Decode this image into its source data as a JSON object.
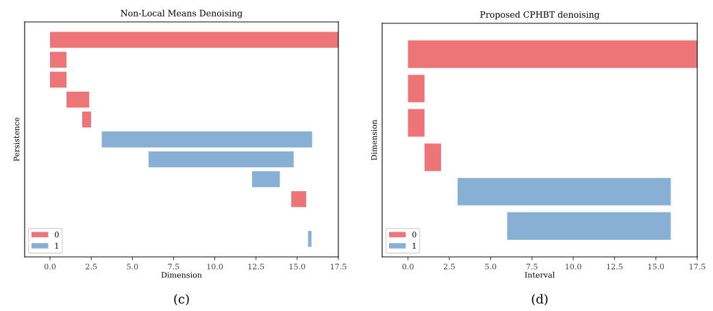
{
  "chart_data": [
    {
      "type": "bar",
      "orientation": "horizontal",
      "title": "Non-Local Means Denoising",
      "xlabel": "Dimension",
      "ylabel": "Persistence",
      "categories": [
        null,
        null,
        null,
        null,
        null,
        null,
        null,
        null,
        null,
        null,
        null
      ],
      "series": [
        {
          "name": "0",
          "color": "#ee7577",
          "base": [
            0,
            0,
            0,
            1.0,
            1.95,
            null,
            null,
            null,
            14.64,
            null,
            null
          ],
          "values": [
            17.5,
            1.0,
            1.0,
            1.38,
            0.54,
            null,
            null,
            null,
            0.91,
            null,
            null
          ]
        },
        {
          "name": "1",
          "color": "#88b0d5",
          "base": [
            null,
            null,
            null,
            null,
            null,
            3.14,
            5.98,
            12.26,
            null,
            null,
            15.66
          ],
          "values": [
            null,
            null,
            null,
            null,
            null,
            12.77,
            8.81,
            1.69,
            null,
            null,
            0.21
          ]
        }
      ],
      "xlim": [
        -1.54,
        17.5
      ],
      "xticks": [
        {
          "value": 0,
          "label": "0.0"
        },
        {
          "value": 2.5,
          "label": "2.5"
        },
        {
          "value": 5,
          "label": "5.0"
        },
        {
          "value": 7.5,
          "label": "7.5"
        },
        {
          "value": 10,
          "label": "10.0"
        },
        {
          "value": 12.5,
          "label": "12.5"
        },
        {
          "value": 15,
          "label": "15.0"
        },
        {
          "value": 17.5,
          "label": "17.5"
        }
      ],
      "legend": "bottom left",
      "grid": false,
      "tick_labels": "x",
      "annotations": [
        "(c)"
      ]
    },
    {
      "type": "bar",
      "orientation": "horizontal",
      "title": "Proposed CPHBT denoising",
      "xlabel": "Interval",
      "ylabel": "Dimension",
      "categories": [
        null,
        null,
        null,
        null,
        null,
        null
      ],
      "series": [
        {
          "name": "0",
          "color": "#ee7577",
          "base": [
            0,
            0,
            0,
            1.0,
            null,
            null
          ],
          "values": [
            17.5,
            1.0,
            1.0,
            1.0,
            null,
            null
          ]
        },
        {
          "name": "1",
          "color": "#88b0d5",
          "base": [
            null,
            null,
            null,
            null,
            3.0,
            6.0
          ],
          "values": [
            null,
            null,
            null,
            null,
            12.9,
            9.9
          ]
        }
      ],
      "xlim": [
        -1.56,
        17.5
      ],
      "xticks": [
        {
          "value": 0,
          "label": "0.0"
        },
        {
          "value": 2.5,
          "label": "2.5"
        },
        {
          "value": 5,
          "label": "5.0"
        },
        {
          "value": 7.5,
          "label": "7.5"
        },
        {
          "value": 10,
          "label": "10.0"
        },
        {
          "value": 12.5,
          "label": "12.5"
        },
        {
          "value": 15,
          "label": "15.0"
        },
        {
          "value": 17.5,
          "label": "17.5"
        }
      ],
      "legend": "bottom left",
      "grid": false,
      "tick_labels": "x",
      "annotations": [
        "(d)"
      ]
    }
  ]
}
